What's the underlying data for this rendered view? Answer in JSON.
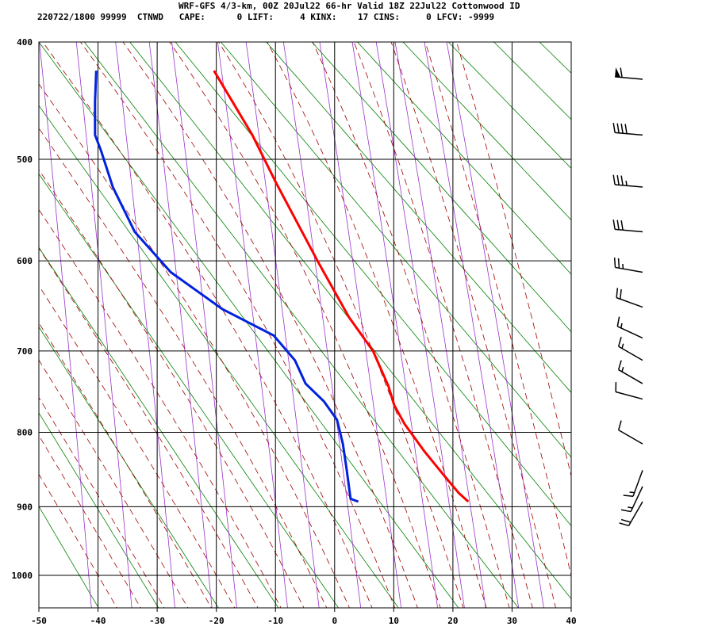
{
  "chart_data": {
    "type": "sounding",
    "title": "WRF-GFS 4/3-km, 00Z 20Jul22 66-hr Valid 18Z 22Jul22 Cottonwood ID",
    "subtitle": "220722/1800 99999  CTNWD   CAPE:      0 LIFT:     4 KINX:    17 CINS:     0 LFCV: -9999",
    "xlim": [
      -50,
      40
    ],
    "xticks": [
      -50,
      -40,
      -30,
      -20,
      -10,
      0,
      10,
      20,
      30,
      40
    ],
    "ylim": [
      1050,
      400
    ],
    "yticks": [
      400,
      500,
      600,
      700,
      800,
      900,
      1000
    ],
    "grid": true,
    "series": [
      {
        "color": "#ff0000",
        "pressure": [
          423,
          478,
          522,
          600,
          661,
          700,
          742,
          766,
          789,
          825,
          857,
          881,
          893
        ],
        "temperature": [
          -20.4,
          -13.9,
          -9.9,
          -2.9,
          2.4,
          6.5,
          9.1,
          10.1,
          11.8,
          15.2,
          18.5,
          21.0,
          22.6
        ]
      },
      {
        "color": "#0022dd",
        "pressure": [
          423,
          449,
          478,
          492,
          526,
          570,
          612,
          652,
          682,
          711,
          739,
          761,
          784,
          815,
          847,
          889,
          893
        ],
        "temperature": [
          -40.3,
          -40.5,
          -40.5,
          -39.5,
          -37.5,
          -33.8,
          -27.7,
          -19.0,
          -10.3,
          -6.7,
          -4.9,
          -1.8,
          0.4,
          1.4,
          2.0,
          2.7,
          4.0
        ]
      }
    ],
    "winds": [
      {
        "pressure": 430,
        "direction": 275,
        "speed": 60
      },
      {
        "pressure": 478,
        "direction": 275,
        "speed": 40
      },
      {
        "pressure": 526,
        "direction": 275,
        "speed": 35
      },
      {
        "pressure": 570,
        "direction": 275,
        "speed": 30
      },
      {
        "pressure": 612,
        "direction": 280,
        "speed": 25
      },
      {
        "pressure": 650,
        "direction": 290,
        "speed": 20
      },
      {
        "pressure": 685,
        "direction": 295,
        "speed": 15
      },
      {
        "pressure": 711,
        "direction": 300,
        "speed": 15
      },
      {
        "pressure": 739,
        "direction": 300,
        "speed": 15
      },
      {
        "pressure": 758,
        "direction": 285,
        "speed": 10
      },
      {
        "pressure": 815,
        "direction": 300,
        "speed": 10
      },
      {
        "pressure": 850,
        "direction": 200,
        "speed": 15
      },
      {
        "pressure": 872,
        "direction": 205,
        "speed": 15
      },
      {
        "pressure": 893,
        "direction": 210,
        "speed": 20
      }
    ]
  }
}
